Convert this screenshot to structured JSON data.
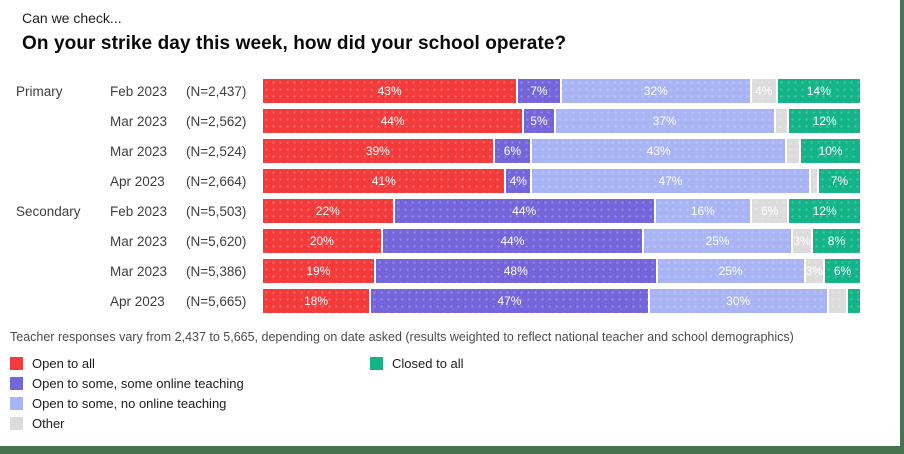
{
  "header": {
    "kicker": "Can we check...",
    "title": "On your strike day this week, how did your school operate?"
  },
  "footnote": "Teacher responses vary from 2,437 to 5,665, depending on date asked (results weighted to reflect national teacher and school demographics)",
  "accent_color": "#47734E",
  "chart_data": {
    "type": "bar",
    "subtype": "horizontal-stacked",
    "title": "On your strike day this week, how did your school operate?",
    "xlim": [
      0,
      100
    ],
    "unit": "%",
    "legend_position": "bottom",
    "legend": [
      {
        "label": "Open to all",
        "color": "#F33B3B"
      },
      {
        "label": "Open to some, some online teaching",
        "color": "#7565DB"
      },
      {
        "label": "Open to some, no online teaching",
        "color": "#A8B4F4"
      },
      {
        "label": "Other",
        "color": "#DCDCDC"
      },
      {
        "label": "Closed to all",
        "color": "#12B488"
      }
    ],
    "rows": [
      {
        "group": "Primary",
        "date": "Feb 2023",
        "n": "(N=2,437)",
        "values": [
          43,
          7,
          32,
          4,
          14
        ],
        "labels": [
          "43%",
          "7%",
          "32%",
          "4%",
          "14%"
        ]
      },
      {
        "group": "",
        "date": "Mar 2023",
        "n": "(N=2,562)",
        "values": [
          44,
          5,
          37,
          2,
          12
        ],
        "labels": [
          "44%",
          "5%",
          "37%",
          "",
          "12%"
        ]
      },
      {
        "group": "",
        "date": "Mar 2023",
        "n": "(N=2,524)",
        "values": [
          39,
          6,
          43,
          2,
          10
        ],
        "labels": [
          "39%",
          "6%",
          "43%",
          "",
          "10%"
        ]
      },
      {
        "group": "",
        "date": "Apr 2023",
        "n": "(N=2,664)",
        "values": [
          41,
          4,
          47,
          1,
          7
        ],
        "labels": [
          "41%",
          "4%",
          "47%",
          "",
          "7%"
        ]
      },
      {
        "group": "Secondary",
        "date": "Feb 2023",
        "n": "(N=5,503)",
        "values": [
          22,
          44,
          16,
          6,
          12
        ],
        "labels": [
          "22%",
          "44%",
          "16%",
          "6%",
          "12%"
        ]
      },
      {
        "group": "",
        "date": "Mar 2023",
        "n": "(N=5,620)",
        "values": [
          20,
          44,
          25,
          3,
          8
        ],
        "labels": [
          "20%",
          "44%",
          "25%",
          "3%",
          "8%"
        ]
      },
      {
        "group": "",
        "date": "Mar 2023",
        "n": "(N=5,386)",
        "values": [
          19,
          48,
          25,
          3,
          6
        ],
        "labels": [
          "19%",
          "48%",
          "25%",
          "3%",
          "6%"
        ]
      },
      {
        "group": "",
        "date": "Apr 2023",
        "n": "(N=5,665)",
        "values": [
          18,
          47,
          30,
          3,
          2
        ],
        "labels": [
          "18%",
          "47%",
          "30%",
          "",
          ""
        ]
      }
    ]
  }
}
